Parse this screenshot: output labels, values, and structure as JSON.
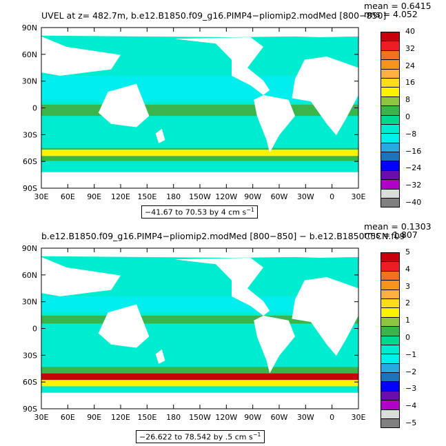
{
  "panels": [
    {
      "title": "UVEL at z= 482.7m, b.e12.B1850.f09_g16.PIMP4−pliomip2.modMed [800−850]",
      "mean": "mean = 0.6415",
      "rms": "rms = 4.052",
      "range_text": "−41.67 to 70.53 by 4 cm s",
      "range_superscript": "−1",
      "lat_labels": [
        "90N",
        "60N",
        "30N",
        "0",
        "30S",
        "60S",
        "90S"
      ],
      "lon_labels": [
        "30E",
        "60E",
        "90E",
        "120E",
        "150E",
        "180",
        "150W",
        "120W",
        "90W",
        "60W",
        "30W",
        "0",
        "30E"
      ],
      "legend_labels": [
        "40",
        "32",
        "24",
        "16",
        "8",
        "0",
        "−8",
        "−16",
        "−24",
        "−32",
        "−40"
      ]
    },
    {
      "title": "b.e12.B1850.f09_g16.PIMP4−pliomip2.modMed [800−850] − b.e12.B1850C5CN.f09",
      "mean": "mean = 0.1303",
      "rms": "rms = 1.807",
      "range_text": "−26.622 to 78.542 by .5 cm s",
      "range_superscript": "−1",
      "lat_labels": [
        "90N",
        "60N",
        "30N",
        "0",
        "30S",
        "60S",
        "90S"
      ],
      "lon_labels": [
        "30E",
        "60E",
        "90E",
        "120E",
        "150E",
        "180",
        "150W",
        "120W",
        "90W",
        "60W",
        "30W",
        "0",
        "30E"
      ],
      "legend_labels": [
        "5",
        "4",
        "3",
        "2",
        "1",
        "0",
        "−1",
        "−2",
        "−3",
        "−4",
        "−5"
      ]
    }
  ],
  "colorbar": [
    "#c8000a",
    "#ee1c24",
    "#f56f22",
    "#f7941d",
    "#fbb040",
    "#ffde17",
    "#fdf200",
    "#8dc63f",
    "#39b54a",
    "#00d88f",
    "#00ecd0",
    "#00eeee",
    "#27aae1",
    "#1c75bc",
    "#0000ff",
    "#6a0dad",
    "#b000c8",
    "#dcdcdc",
    "#808080"
  ],
  "colors": {
    "ocean_main": "#00ecd0",
    "ocean_light": "#00eeee",
    "band_green": "#39b54a",
    "band_yellow": "#fdf200",
    "band_red": "#c8000a"
  }
}
